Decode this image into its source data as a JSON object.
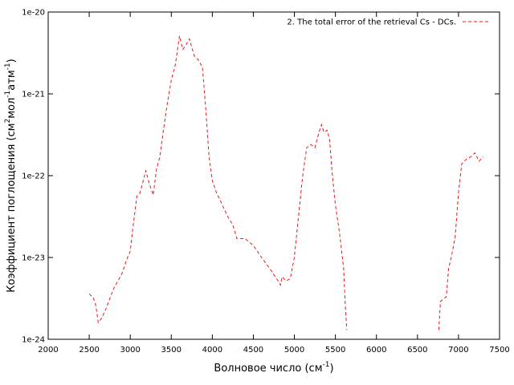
{
  "chart_data": {
    "type": "line",
    "xlabel": [
      "Волновое число (см",
      "-1",
      ")"
    ],
    "ylabel": [
      "Коэффициент поглощения (см",
      "2",
      "мол",
      "-1",
      "атм",
      "-1",
      ")"
    ],
    "x": [
      2500,
      2550,
      2580,
      2610,
      2650,
      2700,
      2800,
      2900,
      2950,
      3000,
      3030,
      3080,
      3120,
      3150,
      3190,
      3230,
      3280,
      3320,
      3360,
      3400,
      3450,
      3500,
      3550,
      3600,
      3640,
      3680,
      3720,
      3780,
      3830,
      3880,
      3920,
      3960,
      4000,
      4050,
      4100,
      4150,
      4200,
      4250,
      4300,
      4400,
      4500,
      4600,
      4700,
      4800,
      4830,
      4850,
      4900,
      4950,
      5000,
      5050,
      5100,
      5150,
      5200,
      5250,
      5300,
      5330,
      5360,
      5400,
      5430,
      5460,
      5500,
      5550,
      5600,
      5620,
      5640,
      6200,
      6760,
      6780,
      6850,
      6880,
      6920,
      6960,
      7000,
      7040,
      7100,
      7150,
      7200,
      7250,
      7300
    ],
    "series": [
      {
        "name": "2. The total error of the retrieval Cs - DCs.",
        "color": "#e41a1c",
        "dashed": true,
        "values": [
          3.6e-24,
          3.2e-24,
          2.6e-24,
          1.6e-24,
          1.8e-24,
          2.3e-24,
          4.2e-24,
          6.4e-24,
          9.1e-24,
          1.2e-23,
          2.2e-23,
          5.6e-23,
          6.2e-23,
          8.1e-23,
          1.15e-22,
          8.1e-23,
          5.8e-23,
          1.2e-22,
          1.7e-22,
          3.4e-22,
          7.5e-22,
          1.47e-21,
          2.3e-21,
          5.1e-21,
          3.5e-21,
          4e-21,
          4.7e-21,
          2.9e-21,
          2.6e-21,
          2.1e-21,
          6.6e-22,
          1.7e-22,
          8.7e-23,
          6.2e-23,
          4.9e-23,
          3.8e-23,
          3e-23,
          2.5e-23,
          1.7e-23,
          1.7e-23,
          1.4e-23,
          1e-23,
          7.3e-24,
          5.2e-24,
          4.6e-24,
          5.8e-24,
          5.2e-24,
          5.5e-24,
          1e-23,
          3.2e-23,
          9.8e-23,
          2.2e-22,
          2.4e-22,
          2.2e-22,
          3.4e-22,
          4.2e-22,
          3.4e-22,
          3.6e-22,
          2.7e-22,
          1.1e-22,
          4.4e-23,
          2e-23,
          7.3e-24,
          2.6e-24,
          1.3e-24,
          null,
          1.3e-24,
          2.9e-24,
          3.3e-24,
          7.3e-24,
          1.1e-23,
          1.8e-23,
          6.2e-23,
          1.4e-22,
          1.6e-22,
          1.7e-22,
          1.9e-22,
          1.5e-22,
          1.7e-22
        ]
      }
    ],
    "xlim": [
      2000,
      7500
    ],
    "xticks": [
      2000,
      2500,
      3000,
      3500,
      4000,
      4500,
      5000,
      5500,
      6000,
      6500,
      7000,
      7500
    ],
    "ylim": [
      1e-24,
      1e-20
    ],
    "yticks": [
      1e-24,
      1e-23,
      1e-22,
      1e-21,
      1e-20
    ],
    "ylog": true,
    "grid": false,
    "legend": "top right"
  }
}
